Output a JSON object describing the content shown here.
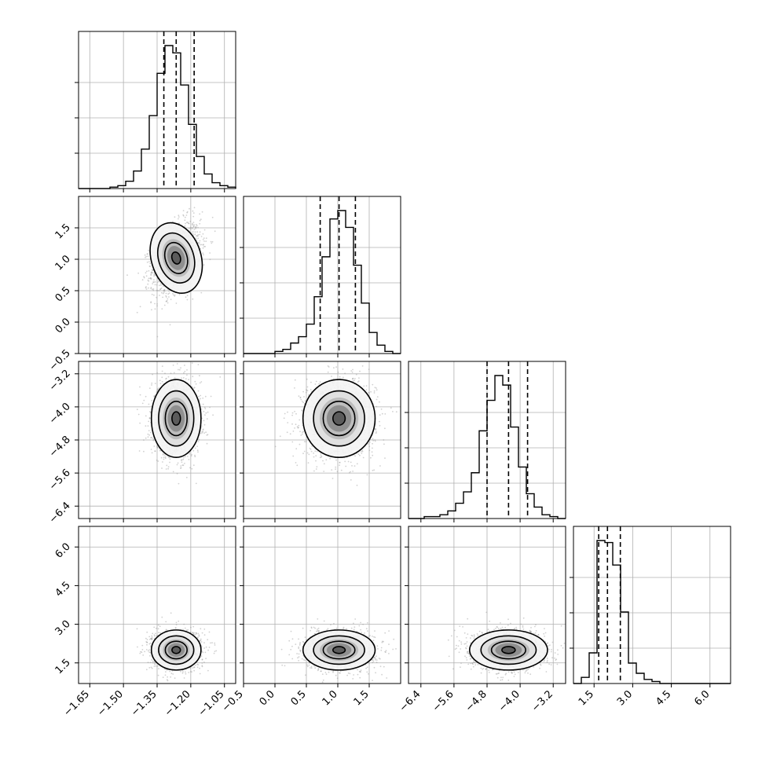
{
  "chart_data": {
    "type": "corner",
    "title": "",
    "parameters": [
      {
        "range": [
          -1.7,
          -1.0
        ],
        "ticks": [
          -1.65,
          -1.5,
          -1.35,
          -1.2,
          -1.05
        ],
        "tick_labels": [
          "−1.65",
          "−1.50",
          "−1.35",
          "−1.20",
          "−1.05"
        ],
        "mean": -1.265,
        "sd": 0.054,
        "quantiles": [
          -1.32,
          -1.265,
          -1.185
        ]
      },
      {
        "range": [
          -0.5,
          2.0
        ],
        "ticks": [
          -0.5,
          0.0,
          0.5,
          1.0,
          1.5
        ],
        "tick_labels": [
          "−0.5",
          "0.0",
          "0.5",
          "1.0",
          "1.5"
        ],
        "mean": 1.02,
        "sd": 0.28,
        "quantiles": [
          0.72,
          1.02,
          1.28
        ]
      },
      {
        "range": [
          -6.7,
          -2.9
        ],
        "ticks": [
          -6.4,
          -5.6,
          -4.8,
          -4.0,
          -3.2
        ],
        "tick_labels": [
          "−6.4",
          "−5.6",
          "−4.8",
          "−4.0",
          "−3.2"
        ],
        "mean": -4.28,
        "sd": 0.46,
        "quantiles": [
          -4.8,
          -4.28,
          -3.82
        ]
      },
      {
        "range": [
          0.7,
          6.8
        ],
        "ticks": [
          1.5,
          3.0,
          4.5,
          6.0
        ],
        "tick_labels": [
          "1.5",
          "3.0",
          "4.5",
          "6.0"
        ],
        "mean": 2.0,
        "sd": 0.38,
        "quantiles": [
          1.68,
          2.02,
          2.52
        ]
      }
    ],
    "correlations": [
      [
        1,
        0.35,
        0.0,
        0.0
      ],
      [
        0.35,
        1,
        0.0,
        0.0
      ],
      [
        0.0,
        0.0,
        1,
        0.0
      ],
      [
        0.0,
        0.0,
        0.0,
        1
      ]
    ],
    "histograms": [
      [
        0,
        0,
        0,
        0,
        1,
        2,
        5,
        12,
        27,
        50,
        79,
        98,
        93,
        71,
        44,
        22,
        10,
        4,
        2,
        1
      ],
      [
        0,
        0,
        0,
        0,
        1,
        2,
        5,
        8,
        14,
        27,
        46,
        64,
        68,
        60,
        42,
        24,
        10,
        4,
        1,
        0
      ],
      [
        0,
        0,
        1,
        1,
        2,
        4,
        8,
        14,
        24,
        46,
        62,
        75,
        70,
        48,
        27,
        13,
        6,
        2,
        1,
        0
      ],
      [
        0,
        3,
        15,
        70,
        69,
        58,
        35,
        10,
        5,
        2,
        1,
        0,
        0,
        0,
        0,
        0,
        0,
        0,
        0,
        0
      ]
    ],
    "grid": true
  }
}
